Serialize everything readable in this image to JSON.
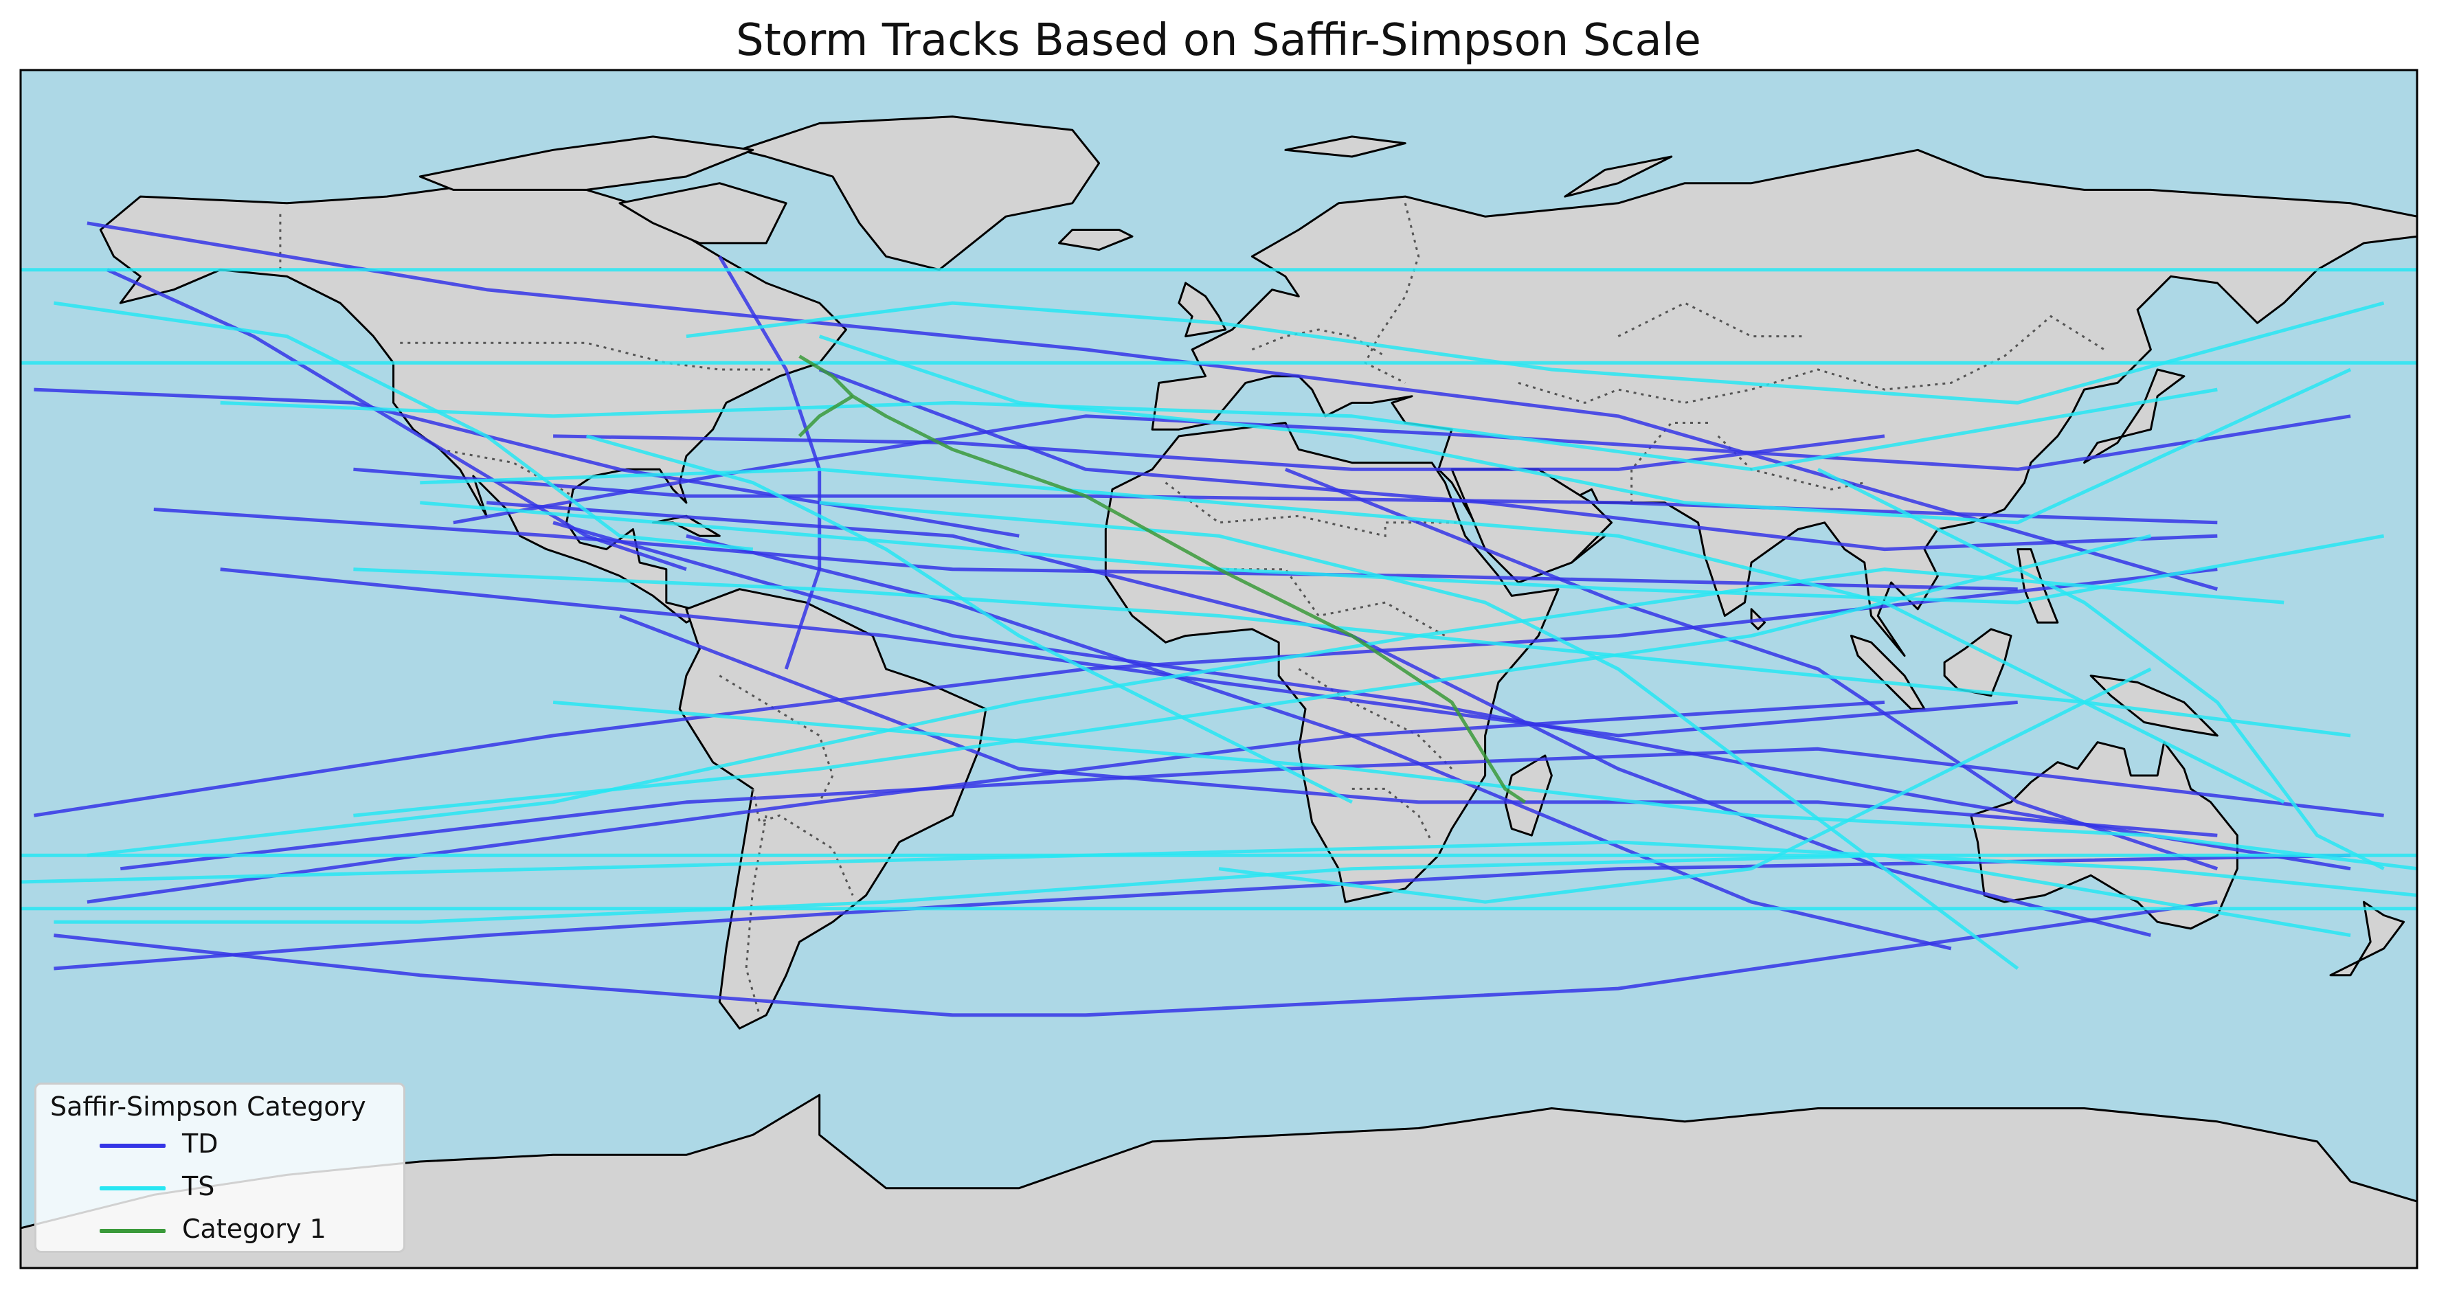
{
  "title": "Storm Tracks Based on Saffir-Simpson Scale",
  "map": {
    "projection": "PlateCarree",
    "ocean_color": "#add8e6",
    "land_color": "#d3d3d3",
    "coastline_color": "#000000",
    "border_style": "dotted",
    "border_color": "#555555",
    "extent": {
      "lon": [
        -180,
        180
      ],
      "lat": [
        -90,
        90
      ]
    }
  },
  "legend": {
    "title": "Saffir-Simpson Category",
    "placement": "lower-left",
    "entries": [
      {
        "label": "TD",
        "color": "#3535e6"
      },
      {
        "label": "TS",
        "color": "#27e6f2"
      },
      {
        "label": "Category 1",
        "color": "#3a9a3a"
      }
    ]
  },
  "chart_data": {
    "type": "line",
    "title": "Storm Tracks Based on Saffir-Simpson Scale",
    "xlabel": "",
    "ylabel": "",
    "xlim": [
      -180,
      180
    ],
    "ylim": [
      -90,
      90
    ],
    "grid": false,
    "legend_placement": "lower-left",
    "series": [
      {
        "name": "TD",
        "color": "#3535e6",
        "tracks": [
          [
            [
              -170,
              67
            ],
            [
              -110,
              57
            ],
            [
              -20,
              48
            ],
            [
              60,
              38
            ],
            [
              150,
              12
            ]
          ],
          [
            [
              -167,
              60
            ],
            [
              -145,
              50
            ],
            [
              -120,
              35
            ],
            [
              -95,
              20
            ],
            [
              -80,
              15
            ]
          ],
          [
            [
              -178,
              42
            ],
            [
              -130,
              40
            ],
            [
              -90,
              30
            ],
            [
              -60,
              25
            ],
            [
              -30,
              20
            ]
          ],
          [
            [
              -160,
              24
            ],
            [
              -100,
              20
            ],
            [
              -40,
              15
            ],
            [
              30,
              14
            ],
            [
              120,
              12
            ]
          ],
          [
            [
              -178,
              -22
            ],
            [
              -100,
              -10
            ],
            [
              -20,
              0
            ],
            [
              60,
              5
            ],
            [
              150,
              15
            ]
          ],
          [
            [
              -170,
              -35
            ],
            [
              -120,
              -28
            ],
            [
              -60,
              -20
            ],
            [
              20,
              -10
            ],
            [
              100,
              -5
            ]
          ],
          [
            [
              -165,
              -30
            ],
            [
              -80,
              -20
            ],
            [
              10,
              -15
            ],
            [
              90,
              -12
            ],
            [
              175,
              -22
            ]
          ],
          [
            [
              -175,
              -45
            ],
            [
              -110,
              -40
            ],
            [
              -30,
              -35
            ],
            [
              60,
              -30
            ],
            [
              170,
              -28
            ]
          ],
          [
            [
              -100,
              22
            ],
            [
              -40,
              5
            ],
            [
              30,
              -5
            ],
            [
              110,
              -20
            ],
            [
              170,
              -30
            ]
          ],
          [
            [
              -60,
              45
            ],
            [
              -20,
              30
            ],
            [
              40,
              25
            ],
            [
              100,
              18
            ],
            [
              150,
              20
            ]
          ],
          [
            [
              -130,
              30
            ],
            [
              -80,
              26
            ],
            [
              -20,
              26
            ],
            [
              60,
              25
            ],
            [
              150,
              22
            ]
          ],
          [
            [
              -80,
              20
            ],
            [
              -40,
              10
            ],
            [
              20,
              -10
            ],
            [
              80,
              -35
            ],
            [
              110,
              -42
            ]
          ],
          [
            [
              140,
              -40
            ],
            [
              100,
              -30
            ],
            [
              60,
              -15
            ],
            [
              20,
              5
            ],
            [
              -40,
              20
            ],
            [
              -110,
              25
            ]
          ],
          [
            [
              100,
              35
            ],
            [
              60,
              30
            ],
            [
              20,
              30
            ],
            [
              -40,
              34
            ],
            [
              -100,
              35
            ]
          ],
          [
            [
              -115,
              22
            ],
            [
              -70,
              30
            ],
            [
              -20,
              38
            ],
            [
              40,
              35
            ],
            [
              120,
              30
            ],
            [
              170,
              38
            ]
          ],
          [
            [
              -75,
              62
            ],
            [
              -65,
              45
            ],
            [
              -60,
              30
            ],
            [
              -60,
              15
            ],
            [
              -65,
              0
            ]
          ],
          [
            [
              10,
              30
            ],
            [
              60,
              10
            ],
            [
              90,
              0
            ],
            [
              120,
              -20
            ],
            [
              150,
              -30
            ]
          ],
          [
            [
              -150,
              15
            ],
            [
              -100,
              10
            ],
            [
              -50,
              5
            ],
            [
              0,
              -2
            ],
            [
              60,
              -10
            ],
            [
              120,
              -5
            ]
          ],
          [
            [
              -90,
              8
            ],
            [
              -30,
              -15
            ],
            [
              30,
              -20
            ],
            [
              90,
              -20
            ],
            [
              150,
              -25
            ]
          ],
          [
            [
              -175,
              -40
            ],
            [
              -120,
              -46
            ],
            [
              -40,
              -52
            ],
            [
              -20,
              -52
            ],
            [
              60,
              -48
            ],
            [
              150,
              -35
            ]
          ]
        ]
      },
      {
        "name": "TS",
        "color": "#27e6f2",
        "tracks": [
          [
            [
              -180,
              60
            ],
            [
              -90,
              60
            ],
            [
              0,
              60
            ],
            [
              90,
              60
            ],
            [
              180,
              60
            ]
          ],
          [
            [
              -180,
              46
            ],
            [
              -90,
              46
            ],
            [
              0,
              46
            ],
            [
              90,
              46
            ],
            [
              180,
              46
            ]
          ],
          [
            [
              -180,
              -28
            ],
            [
              -90,
              -28
            ],
            [
              0,
              -28
            ],
            [
              90,
              -28
            ],
            [
              180,
              -28
            ]
          ],
          [
            [
              -180,
              -36
            ],
            [
              -90,
              -36
            ],
            [
              0,
              -36
            ],
            [
              90,
              -36
            ],
            [
              180,
              -36
            ]
          ],
          [
            [
              -180,
              -32
            ],
            [
              -100,
              -30
            ],
            [
              -20,
              -28
            ],
            [
              60,
              -26
            ],
            [
              140,
              -30
            ],
            [
              180,
              -34
            ]
          ],
          [
            [
              -175,
              55
            ],
            [
              -140,
              50
            ],
            [
              -110,
              35
            ],
            [
              -90,
              20
            ],
            [
              -70,
              18
            ]
          ],
          [
            [
              -150,
              40
            ],
            [
              -100,
              38
            ],
            [
              -40,
              40
            ],
            [
              20,
              38
            ],
            [
              80,
              30
            ],
            [
              150,
              42
            ]
          ],
          [
            [
              -120,
              25
            ],
            [
              -60,
              20
            ],
            [
              0,
              15
            ],
            [
              60,
              12
            ],
            [
              120,
              10
            ],
            [
              175,
              20
            ]
          ],
          [
            [
              -130,
              15
            ],
            [
              -60,
              12
            ],
            [
              0,
              8
            ],
            [
              60,
              2
            ],
            [
              130,
              -5
            ],
            [
              170,
              -10
            ]
          ],
          [
            [
              -100,
              -5
            ],
            [
              -40,
              -10
            ],
            [
              20,
              -15
            ],
            [
              80,
              -22
            ],
            [
              140,
              -25
            ],
            [
              180,
              -30
            ]
          ],
          [
            [
              -175,
              -38
            ],
            [
              -120,
              -38
            ],
            [
              -50,
              -35
            ],
            [
              20,
              -30
            ],
            [
              100,
              -28
            ],
            [
              170,
              -40
            ]
          ],
          [
            [
              -60,
              50
            ],
            [
              -30,
              40
            ],
            [
              20,
              35
            ],
            [
              70,
              25
            ],
            [
              120,
              22
            ],
            [
              170,
              45
            ]
          ],
          [
            [
              120,
              -45
            ],
            [
              100,
              -30
            ],
            [
              80,
              -15
            ],
            [
              60,
              0
            ],
            [
              40,
              10
            ],
            [
              0,
              20
            ],
            [
              -60,
              25
            ]
          ],
          [
            [
              -95,
              35
            ],
            [
              -70,
              28
            ],
            [
              -50,
              18
            ],
            [
              -30,
              5
            ],
            [
              -10,
              -5
            ],
            [
              20,
              -20
            ]
          ],
          [
            [
              160,
              -20
            ],
            [
              130,
              -5
            ],
            [
              100,
              10
            ],
            [
              60,
              20
            ],
            [
              0,
              25
            ],
            [
              -60,
              30
            ],
            [
              -120,
              28
            ]
          ],
          [
            [
              -170,
              -28
            ],
            [
              -100,
              -20
            ],
            [
              -30,
              -5
            ],
            [
              30,
              5
            ],
            [
              100,
              15
            ],
            [
              160,
              10
            ]
          ],
          [
            [
              -80,
              50
            ],
            [
              -40,
              55
            ],
            [
              0,
              52
            ],
            [
              50,
              45
            ],
            [
              120,
              40
            ],
            [
              175,
              55
            ]
          ],
          [
            [
              -130,
              -22
            ],
            [
              -60,
              -15
            ],
            [
              10,
              -5
            ],
            [
              80,
              5
            ],
            [
              140,
              20
            ]
          ],
          [
            [
              140,
              0
            ],
            [
              120,
              -10
            ],
            [
              100,
              -20
            ],
            [
              80,
              -30
            ],
            [
              40,
              -35
            ],
            [
              0,
              -30
            ]
          ],
          [
            [
              90,
              30
            ],
            [
              110,
              20
            ],
            [
              130,
              10
            ],
            [
              150,
              -5
            ],
            [
              165,
              -25
            ],
            [
              175,
              -30
            ]
          ]
        ]
      },
      {
        "name": "Category 1",
        "color": "#3a9a3a",
        "tracks": [
          [
            [
              -63,
              47
            ],
            [
              -58,
              44
            ],
            [
              -55,
              41
            ],
            [
              -50,
              38
            ],
            [
              -40,
              33
            ],
            [
              -20,
              26
            ],
            [
              0,
              15
            ],
            [
              20,
              5
            ],
            [
              35,
              -5
            ],
            [
              43,
              -18
            ],
            [
              46,
              -20
            ]
          ],
          [
            [
              -55,
              41
            ],
            [
              -60,
              38
            ],
            [
              -63,
              35
            ]
          ]
        ]
      }
    ]
  }
}
